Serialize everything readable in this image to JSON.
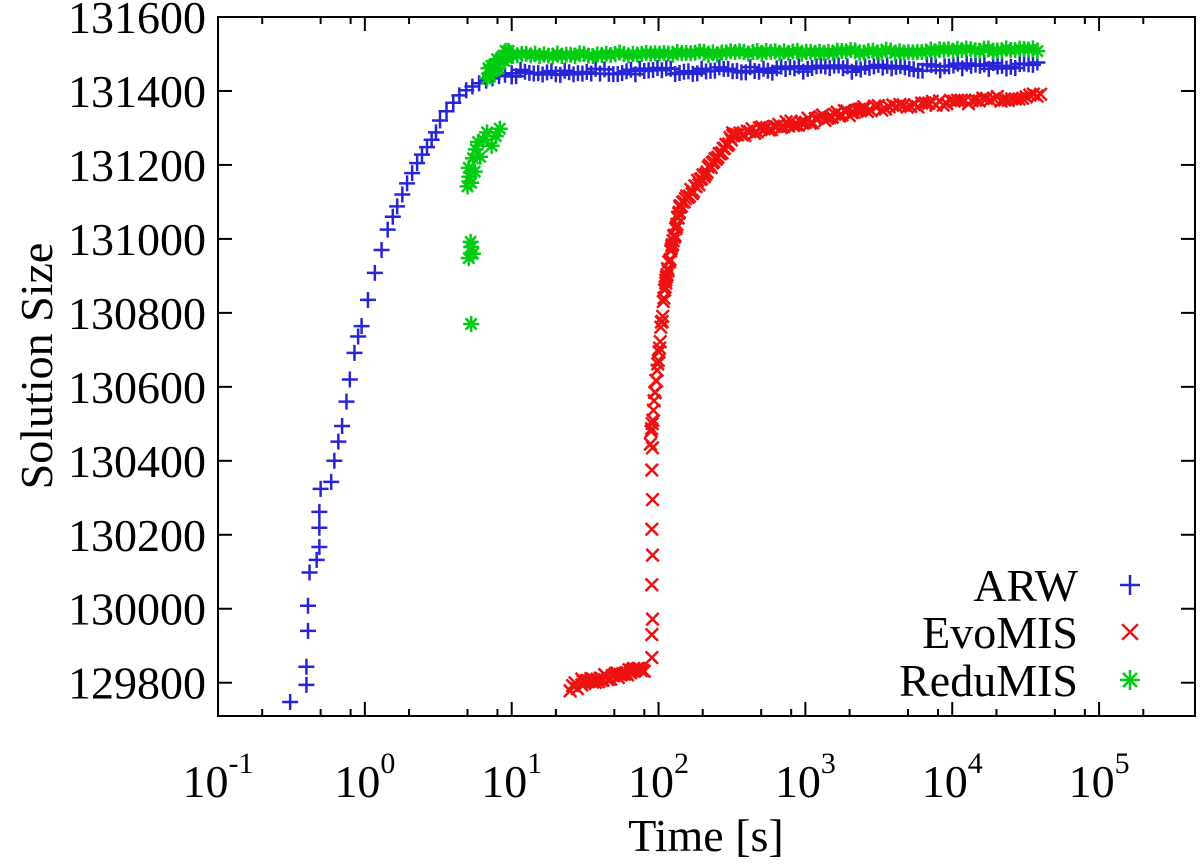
{
  "figure": {
    "background": "#ffffff",
    "axis_color": "#000000"
  },
  "chart_data": {
    "type": "scatter",
    "title": "",
    "xlabel": "Time [s]",
    "ylabel": "Solution Size",
    "x_scale": "log10",
    "xlim": [
      0.1,
      450000
    ],
    "ylim": [
      129710,
      131600
    ],
    "grid": false,
    "legend_position": "bottom-right-inside",
    "x_tick_exponents": [
      -1,
      0,
      1,
      2,
      3,
      4,
      5
    ],
    "x_tick_base": "10",
    "x_minor_multiples": [
      2,
      5,
      8
    ],
    "y_ticks": [
      129800,
      130000,
      130200,
      130400,
      130600,
      130800,
      131000,
      131200,
      131400,
      131600
    ],
    "y_tick_labels": [
      "129800",
      "130000",
      "130200",
      "130400",
      "130600",
      "130800",
      "131000",
      "131200",
      "131400",
      "131600"
    ],
    "series": [
      {
        "name": "ARW",
        "marker": "plus",
        "color": "#2626d8",
        "points": [
          [
            0.31,
            129748
          ],
          [
            0.4,
            129794
          ],
          [
            0.4,
            129843
          ],
          [
            0.41,
            129940
          ],
          [
            0.41,
            130008
          ],
          [
            0.42,
            130098
          ],
          [
            0.47,
            130132
          ],
          [
            0.49,
            130167
          ],
          [
            0.49,
            130219
          ],
          [
            0.49,
            130262
          ],
          [
            0.5,
            130324
          ],
          [
            0.59,
            130343
          ],
          [
            0.62,
            130400
          ],
          [
            0.66,
            130452
          ],
          [
            0.7,
            130494
          ],
          [
            0.75,
            130560
          ],
          [
            0.79,
            130620
          ],
          [
            0.85,
            130692
          ],
          [
            0.9,
            130736
          ],
          [
            0.95,
            130764
          ],
          [
            1.05,
            130835
          ],
          [
            1.17,
            130908
          ],
          [
            1.3,
            130970
          ],
          [
            1.43,
            131025
          ],
          [
            1.55,
            131060
          ],
          [
            1.66,
            131088
          ],
          [
            1.8,
            131120
          ],
          [
            1.94,
            131150
          ],
          [
            2.1,
            131178
          ],
          [
            2.27,
            131205
          ],
          [
            2.45,
            131228
          ],
          [
            2.65,
            131248
          ],
          [
            2.85,
            131268
          ],
          [
            3.05,
            131288
          ],
          [
            3.25,
            131320
          ],
          [
            3.6,
            131345
          ],
          [
            4.0,
            131368
          ],
          [
            4.4,
            131388
          ],
          [
            4.9,
            131402
          ],
          [
            5.4,
            131412
          ],
          [
            6.0,
            131421
          ],
          [
            6.7,
            131428
          ],
          [
            7.4,
            131434
          ],
          [
            8.2,
            131440
          ],
          [
            9.0,
            131444
          ],
          [
            10.0,
            131448
          ]
        ],
        "dense_segments": [
          {
            "t0": 10,
            "t1": 38000,
            "v0": 131448,
            "v1": 131468,
            "n": 120,
            "jitter": 9
          }
        ]
      },
      {
        "name": "EvoMIS",
        "marker": "cross",
        "color": "#ee1111",
        "points": [
          [
            25,
            129778
          ],
          [
            26,
            129792
          ],
          [
            27,
            129800
          ],
          [
            28,
            129784
          ],
          [
            30,
            129810
          ],
          [
            90,
            129868
          ],
          [
            90,
            129930
          ],
          [
            91,
            129972
          ],
          [
            90,
            130065
          ],
          [
            91,
            130145
          ],
          [
            90,
            130215
          ],
          [
            91,
            130295
          ],
          [
            90,
            130375
          ],
          [
            91,
            130435
          ]
        ],
        "dense_segments": [
          {
            "t0": 30,
            "t1": 80,
            "v0": 129800,
            "v1": 129838,
            "n": 42,
            "jitter": 9
          },
          {
            "t0": 88,
            "t1": 112,
            "v0": 130450,
            "v1": 130890,
            "n": 26,
            "jitter": 12
          },
          {
            "t0": 112,
            "t1": 140,
            "v0": 130890,
            "v1": 131085,
            "n": 24,
            "jitter": 10
          },
          {
            "t0": 140,
            "t1": 320,
            "v0": 131085,
            "v1": 131280,
            "n": 40,
            "jitter": 9
          },
          {
            "t0": 320,
            "t1": 2500,
            "v0": 131280,
            "v1": 131350,
            "n": 55,
            "jitter": 9
          },
          {
            "t0": 2500,
            "t1": 40000,
            "v0": 131350,
            "v1": 131388,
            "n": 50,
            "jitter": 8
          }
        ]
      },
      {
        "name": "ReduMIS",
        "marker": "asterisk",
        "color": "#00cc11",
        "points": [
          [
            5.3,
            130770
          ],
          [
            5.1,
            130948
          ],
          [
            5.3,
            130978
          ],
          [
            5.45,
            130960
          ],
          [
            5.25,
            130992
          ],
          [
            5.0,
            131142
          ],
          [
            5.15,
            131168
          ],
          [
            5.1,
            131192
          ],
          [
            5.3,
            131152
          ],
          [
            5.45,
            131218
          ],
          [
            5.6,
            131182
          ],
          [
            5.7,
            131242
          ],
          [
            5.9,
            131262
          ],
          [
            6.1,
            131222
          ],
          [
            6.4,
            131268
          ],
          [
            6.8,
            131288
          ],
          [
            7.3,
            131252
          ],
          [
            7.8,
            131278
          ],
          [
            8.3,
            131298
          ]
        ],
        "dense_segments": [
          {
            "t0": 6.8,
            "t1": 9.5,
            "v0": 131445,
            "v1": 131500,
            "n": 16,
            "jitter": 18
          },
          {
            "t0": 9.5,
            "t1": 38000,
            "v0": 131496,
            "v1": 131512,
            "n": 120,
            "jitter": 5
          }
        ]
      }
    ]
  }
}
